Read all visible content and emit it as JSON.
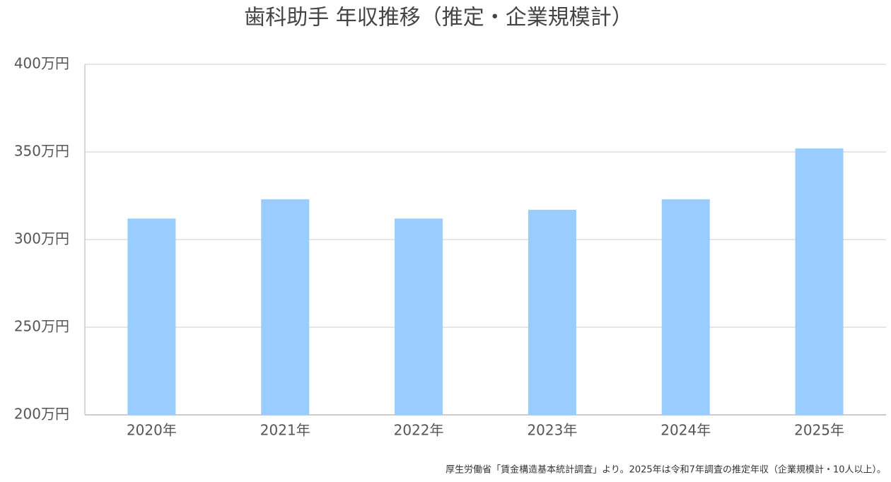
{
  "chart_data": {
    "type": "bar",
    "title": "歯科助手 年収推移（推定・企業規模計）",
    "categories": [
      "2020年",
      "2021年",
      "2022年",
      "2023年",
      "2024年",
      "2025年"
    ],
    "values": [
      312,
      323,
      312,
      317,
      323,
      352
    ],
    "color": "#99ccff",
    "ylim": [
      200,
      400
    ],
    "yticks": [
      {
        "value": 200,
        "label": "200万円"
      },
      {
        "value": 250,
        "label": "250万円"
      },
      {
        "value": 300,
        "label": "300万円"
      },
      {
        "value": 350,
        "label": "350万円"
      },
      {
        "value": 400,
        "label": "400万円"
      }
    ],
    "grid": true,
    "note": "厚生労働省「賃金構造基本統計調査」より。2025年は令和7年調査の推定年収（企業規模計・10人以上）。"
  }
}
